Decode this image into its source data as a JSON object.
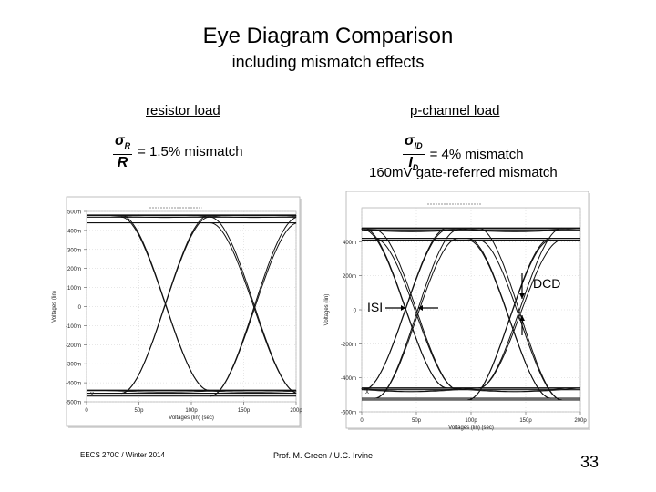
{
  "title": "Eye Diagram Comparison",
  "subtitle": "including mismatch effects",
  "panels": {
    "left": {
      "label": "resistor load",
      "formula_num": "σ",
      "formula_num_sub": "R",
      "formula_den": "R",
      "formula_text": "= 1.5% mismatch"
    },
    "right": {
      "label": "p-channel load",
      "formula_num": "σ",
      "formula_num_sub": "ID",
      "formula_den": "I",
      "formula_den_sub": "D",
      "formula_text": "= 4% mismatch",
      "note": "160mV gate-referred mismatch"
    }
  },
  "chart_data": [
    {
      "type": "line",
      "title": "",
      "xlabel": "Voltages (lin) (sec)",
      "ylabel": "Voltages (lin)",
      "xlim": [
        0,
        200
      ],
      "ylim": [
        -500,
        500
      ],
      "x_ticks": [
        "0",
        "50p",
        "100p",
        "150p",
        "200p"
      ],
      "y_ticks": [
        "500m",
        "400m",
        "300m",
        "200m",
        "100m",
        "0",
        "-100m",
        "-200m",
        "-300m",
        "-400m",
        "-500m"
      ],
      "levels": {
        "high": [
          480,
          470,
          440
        ],
        "low": [
          -440,
          -455,
          -470
        ]
      },
      "crossings_ps": [
        75,
        160
      ],
      "marker": "x"
    },
    {
      "type": "line",
      "title": "",
      "xlabel": "Voltages (lin) (sec)",
      "ylabel": "Voltages (lin)",
      "xlim": [
        0,
        200
      ],
      "ylim": [
        -600,
        600
      ],
      "x_ticks": [
        "0",
        "50p",
        "100p",
        "150p",
        "200p"
      ],
      "y_ticks": [
        "400m",
        "200m",
        "0",
        "-200m",
        "-400m",
        "-600m"
      ],
      "levels": {
        "high": [
          480,
          470,
          420,
          410
        ],
        "low": [
          -460,
          -470,
          -520,
          -530
        ]
      },
      "crossings_ps": [
        40,
        50,
        135,
        145
      ],
      "marker": "x"
    }
  ],
  "annotations": {
    "isi": "ISI",
    "dcd": "DCD"
  },
  "footer": {
    "left": "EECS 270C / Winter 2014",
    "center": "Prof. M. Green / U.C. Irvine",
    "page": "33"
  }
}
